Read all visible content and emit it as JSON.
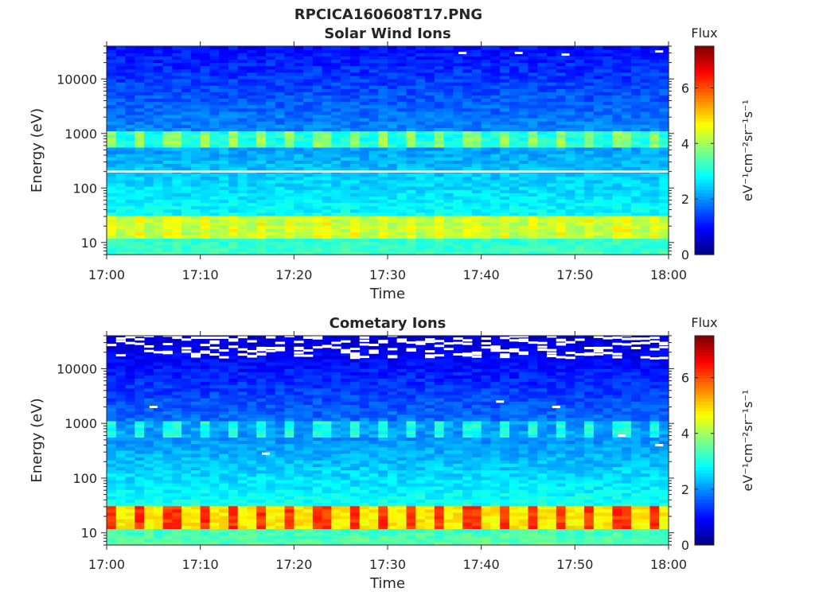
{
  "figure_title": "RPCICA160608T17.PNG",
  "colorbar_stops": [
    "#00007f",
    "#0000ff",
    "#007fff",
    "#00ffff",
    "#7fff7f",
    "#ffff00",
    "#ff7f00",
    "#ff0000",
    "#7f0000"
  ],
  "chart_data": [
    {
      "type": "heatmap",
      "title": "Solar Wind Ions",
      "xlabel": "Time",
      "ylabel": "Energy (eV)",
      "y_scale": "log",
      "ylim": [
        6,
        40000
      ],
      "xlim": [
        "17:00",
        "18:00"
      ],
      "x_ticks": [
        "17:00",
        "17:10",
        "17:20",
        "17:30",
        "17:40",
        "17:50",
        "18:00"
      ],
      "y_ticks": [
        10,
        100,
        1000,
        10000
      ],
      "y_tick_labels": [
        "10",
        "100",
        "1000",
        "10000"
      ],
      "colorbar": {
        "title": "Flux",
        "label": "eV⁻¹cm⁻²sr⁻¹s⁻¹",
        "range": [
          0,
          7.5
        ],
        "ticks": [
          0,
          2,
          4,
          6
        ]
      },
      "time_start_utc": "17:00",
      "time_end_utc": "18:00",
      "energy_bins": 64,
      "time_steps": 60,
      "features": [
        {
          "name": "background",
          "energy_low": 6,
          "energy_high": 40000,
          "flux_at_low": 3.3,
          "flux_at_high": 1.0
        },
        {
          "name": "low-energy band",
          "energy_center": 20,
          "flux_peak": 4.2,
          "pulse_flux": 4.6,
          "pulse_period_min": 3.2
        },
        {
          "name": "solar wind band",
          "energy_center": 800,
          "flux_peak": 3.9,
          "pulse_period_min": 3.2
        }
      ],
      "white_line_energy": 200,
      "gaps": [
        {
          "time": "17:38",
          "energy": 30000
        },
        {
          "time": "17:44",
          "energy": 30000
        },
        {
          "time": "17:49",
          "energy": 28000
        },
        {
          "time": "17:59",
          "energy": 32000
        }
      ]
    },
    {
      "type": "heatmap",
      "title": "Cometary Ions",
      "xlabel": "Time",
      "ylabel": "Energy (eV)",
      "y_scale": "log",
      "ylim": [
        6,
        40000
      ],
      "xlim": [
        "17:00",
        "18:00"
      ],
      "x_ticks": [
        "17:00",
        "17:10",
        "17:20",
        "17:30",
        "17:40",
        "17:50",
        "18:00"
      ],
      "y_ticks": [
        10,
        100,
        1000,
        10000
      ],
      "y_tick_labels": [
        "10",
        "100",
        "1000",
        "10000"
      ],
      "colorbar": {
        "title": "Flux",
        "label": "eV⁻¹cm⁻²sr⁻¹s⁻¹",
        "range": [
          0,
          7.5
        ],
        "ticks": [
          0,
          2,
          4,
          6
        ]
      },
      "time_start_utc": "17:00",
      "time_end_utc": "18:00",
      "energy_bins": 64,
      "time_steps": 60,
      "features": [
        {
          "name": "background",
          "energy_low": 6,
          "energy_high": 40000,
          "flux_at_low": 3.5,
          "flux_at_high": 0.6
        },
        {
          "name": "low-energy band",
          "energy_center": 20,
          "flux_peak": 4.8,
          "pulse_flux": 6.2,
          "pulse_period_min": 3.2
        },
        {
          "name": "solar wind band",
          "energy_center": 800,
          "flux_peak": 3.0,
          "pulse_period_min": 3.2
        }
      ],
      "white_line_energy": null,
      "gaps": [
        {
          "time": "17:05",
          "energy": 2000
        },
        {
          "time": "17:17",
          "energy": 280
        },
        {
          "time": "17:42",
          "energy": 2500
        },
        {
          "time": "17:48",
          "energy": 2000
        },
        {
          "time": "17:55",
          "energy": 600
        },
        {
          "time": "17:59",
          "energy": 400
        }
      ]
    }
  ]
}
